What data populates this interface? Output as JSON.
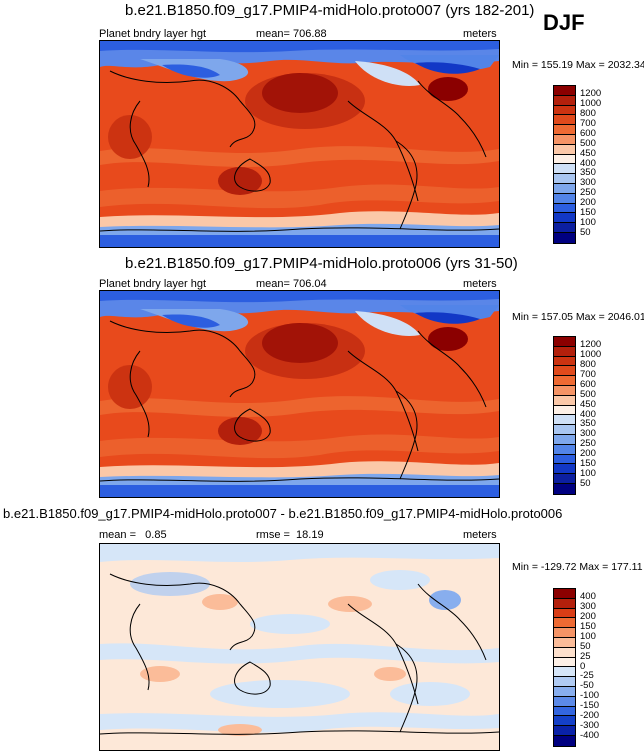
{
  "season": "DJF",
  "panels": [
    {
      "title": "b.e21.B1850.f09_g17.PMIP4-midHolo.proto007 (yrs 182-201)",
      "variable": "Planet bndry layer hgt",
      "mean": "mean= 706.88",
      "units": "meters",
      "minmax": "Min = 155.19 Max = 2032.34",
      "levels": [
        "1200",
        "1000",
        "800",
        "700",
        "600",
        "500",
        "450",
        "400",
        "350",
        "300",
        "250",
        "200",
        "150",
        "100",
        "50"
      ],
      "colors": [
        "#8b0000",
        "#b3200c",
        "#cc3311",
        "#e04a1c",
        "#ee6a33",
        "#f59466",
        "#fbc8a8",
        "#fdf0e6",
        "#cfe0f6",
        "#a9c6f1",
        "#7ea7ec",
        "#5284e8",
        "#2c5ee0",
        "#1238c6",
        "#0c1fa0",
        "#000080"
      ]
    },
    {
      "title": "b.e21.B1850.f09_g17.PMIP4-midHolo.proto006 (yrs 31-50)",
      "variable": "Planet bndry layer hgt",
      "mean": "mean= 706.04",
      "units": "meters",
      "minmax": "Min = 157.05 Max = 2046.01",
      "levels": [
        "1200",
        "1000",
        "800",
        "700",
        "600",
        "500",
        "450",
        "400",
        "350",
        "300",
        "250",
        "200",
        "150",
        "100",
        "50"
      ],
      "colors": [
        "#8b0000",
        "#b3200c",
        "#cc3311",
        "#e04a1c",
        "#ee6a33",
        "#f59466",
        "#fbc8a8",
        "#fdf0e6",
        "#cfe0f6",
        "#a9c6f1",
        "#7ea7ec",
        "#5284e8",
        "#2c5ee0",
        "#1238c6",
        "#0c1fa0",
        "#000080"
      ]
    },
    {
      "title": "b.e21.B1850.f09_g17.PMIP4-midHolo.proto007 - b.e21.B1850.f09_g17.PMIP4-midHolo.proto006",
      "mean": "mean =   0.85",
      "rmse": "rmse =  18.19",
      "units": "meters",
      "minmax": "Min = -129.72 Max = 177.11",
      "levels": [
        "400",
        "300",
        "200",
        "150",
        "100",
        "50",
        "25",
        "0",
        "-25",
        "-50",
        "-100",
        "-150",
        "-200",
        "-300",
        "-400"
      ],
      "colors": [
        "#8b0000",
        "#b3200c",
        "#d93d16",
        "#ee6a33",
        "#f59466",
        "#fbbc99",
        "#fde0cc",
        "#fdf0e6",
        "#d6e6f8",
        "#b0cbf3",
        "#88aeee",
        "#5c8ae8",
        "#3366e0",
        "#1440c8",
        "#0a22a8",
        "#000080"
      ]
    }
  ]
}
